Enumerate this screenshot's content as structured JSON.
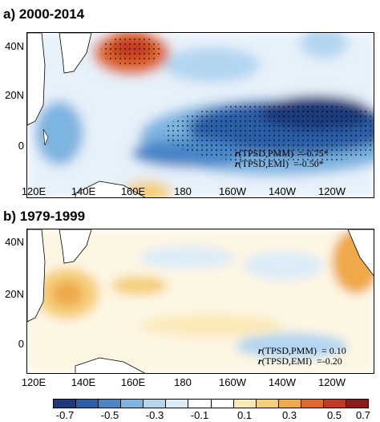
{
  "panels": [
    {
      "title": "a) 2000-2014",
      "corr": [
        {
          "label": "(TPSD,PMM)",
          "value": "=-0.75*"
        },
        {
          "label": "(TPSD,EMI)",
          "value": "=-0.50*"
        }
      ]
    },
    {
      "title": "b) 1979-1999",
      "corr": [
        {
          "label": "(TPSD,PMM)",
          "value": "= 0.10"
        },
        {
          "label": "(TPSD,EMI)",
          "value": "=-0.20"
        }
      ]
    }
  ],
  "corr_symbol": "r",
  "y_ticks": [
    "40N",
    "20N",
    "0"
  ],
  "x_ticks": [
    "120E",
    "140E",
    "160E",
    "180",
    "160W",
    "140W",
    "120W"
  ],
  "colorbar": {
    "colors": [
      "#1a3a7c",
      "#2a5ea8",
      "#4a86c8",
      "#7db4e0",
      "#b3d6f0",
      "#dcecf8",
      "#ffffff",
      "#ffffff",
      "#fbe9b8",
      "#f6cf7a",
      "#efa94a",
      "#e06a2c",
      "#c23821",
      "#8e1b17"
    ],
    "tick_labels": [
      "-0.7",
      "-0.5",
      "-0.3",
      "-0.1",
      "0.1",
      "0.3",
      "0.5",
      "0.7"
    ]
  },
  "colors": {
    "land": "#ffffff",
    "coast": "#000000"
  }
}
